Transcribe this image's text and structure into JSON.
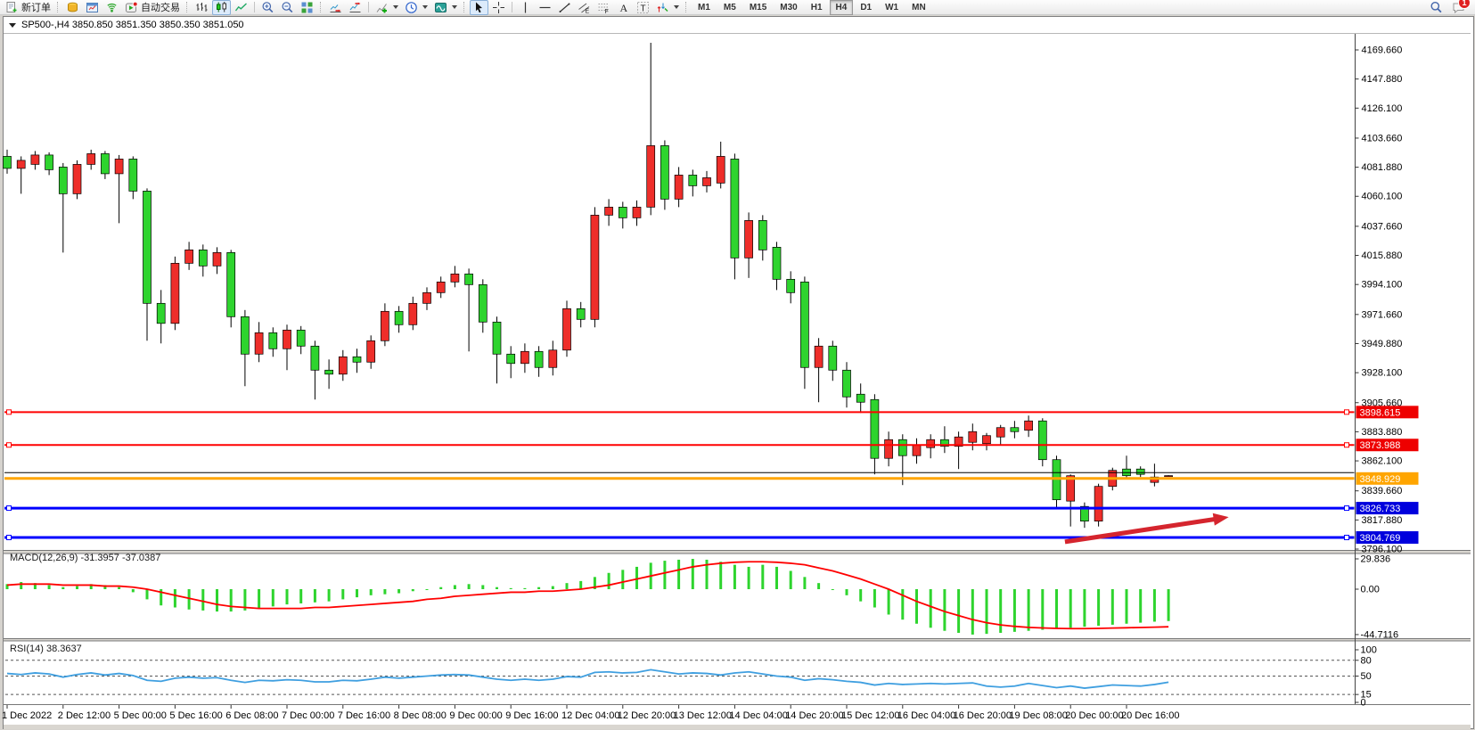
{
  "toolbar": {
    "items": [
      {
        "kind": "btn",
        "name": "new-order-button",
        "icon": "doc-new",
        "label": "新订单"
      },
      {
        "kind": "grip"
      },
      {
        "kind": "btn",
        "name": "market-watch-button",
        "icon": "gold-stack"
      },
      {
        "kind": "btn",
        "name": "data-window-button",
        "icon": "window-blue"
      },
      {
        "kind": "btn",
        "name": "signals-button",
        "icon": "signal"
      },
      {
        "kind": "btn",
        "name": "autotrading-button",
        "icon": "autotrade",
        "label": "自动交易"
      },
      {
        "kind": "grip"
      },
      {
        "kind": "btn",
        "name": "bar-chart-button",
        "icon": "ohlc"
      },
      {
        "kind": "btn",
        "name": "candlestick-button",
        "icon": "candles",
        "active": true
      },
      {
        "kind": "btn",
        "name": "line-chart-button",
        "icon": "linechart"
      },
      {
        "kind": "sep"
      },
      {
        "kind": "btn",
        "name": "zoom-in-button",
        "icon": "zoom-in"
      },
      {
        "kind": "btn",
        "name": "zoom-out-button",
        "icon": "zoom-out"
      },
      {
        "kind": "btn",
        "name": "tile-windows-button",
        "icon": "tiles"
      },
      {
        "kind": "grip"
      },
      {
        "kind": "btn",
        "name": "auto-scroll-button",
        "icon": "autoscroll"
      },
      {
        "kind": "btn",
        "name": "chart-shift-button",
        "icon": "chartshift"
      },
      {
        "kind": "sep"
      },
      {
        "kind": "btn",
        "name": "indicators-button",
        "icon": "ind-plus",
        "caret": true
      },
      {
        "kind": "btn",
        "name": "periods-button",
        "icon": "clock",
        "caret": true
      },
      {
        "kind": "btn",
        "name": "templates-button",
        "icon": "template",
        "caret": true
      },
      {
        "kind": "grip"
      },
      {
        "kind": "btn",
        "name": "cursor-button",
        "icon": "cursor",
        "active": true
      },
      {
        "kind": "btn",
        "name": "crosshair-button",
        "icon": "crosshair"
      },
      {
        "kind": "sep"
      },
      {
        "kind": "btn",
        "name": "vertical-line-button",
        "icon": "vline"
      },
      {
        "kind": "btn",
        "name": "horizontal-line-button",
        "icon": "hline"
      },
      {
        "kind": "btn",
        "name": "trendline-button",
        "icon": "trend"
      },
      {
        "kind": "btn",
        "name": "equidistant-channel-button",
        "icon": "channel"
      },
      {
        "kind": "btn",
        "name": "fibonacci-button",
        "icon": "fibo"
      },
      {
        "kind": "btn",
        "name": "text-button",
        "icon": "textA"
      },
      {
        "kind": "btn",
        "name": "text-label-button",
        "icon": "textT"
      },
      {
        "kind": "btn",
        "name": "arrows-button",
        "icon": "arrows",
        "caret": true
      },
      {
        "kind": "grip"
      },
      {
        "kind": "tf",
        "name": "tf-m1-button",
        "label": "M1"
      },
      {
        "kind": "tf",
        "name": "tf-m5-button",
        "label": "M5"
      },
      {
        "kind": "tf",
        "name": "tf-m15-button",
        "label": "M15"
      },
      {
        "kind": "tf",
        "name": "tf-m30-button",
        "label": "M30"
      },
      {
        "kind": "tf",
        "name": "tf-h1-button",
        "label": "H1"
      },
      {
        "kind": "tf",
        "name": "tf-h4-button",
        "label": "H4",
        "active": true
      },
      {
        "kind": "tf",
        "name": "tf-d1-button",
        "label": "D1"
      },
      {
        "kind": "tf",
        "name": "tf-w1-button",
        "label": "W1"
      },
      {
        "kind": "tf",
        "name": "tf-mn-button",
        "label": "MN"
      }
    ],
    "right_items": [
      {
        "name": "search-button",
        "icon": "search"
      },
      {
        "name": "notifications-button",
        "icon": "chat",
        "badge": "1"
      }
    ]
  },
  "window": {
    "title_line": "SP500-,H4  3850.850 3851.350 3850.350 3851.050"
  },
  "chart_data": {
    "type": "candlestick",
    "symbol": "SP500-",
    "timeframe": "H4",
    "current_bar": {
      "open": "3850.850",
      "high": "3851.350",
      "low": "3850.350",
      "close": "3851.050"
    },
    "up_color": "#ee2e2a",
    "down_color": "#2ed42e",
    "wick_color": "#000000",
    "price_axis": {
      "ticks": [
        "4169.660",
        "4147.880",
        "4126.100",
        "4103.660",
        "4081.880",
        "4060.100",
        "4037.660",
        "4015.880",
        "3994.100",
        "3971.660",
        "3949.880",
        "3928.100",
        "3905.660",
        "3883.880",
        "3862.100",
        "3839.660",
        "3817.880",
        "3796.100"
      ],
      "top_value": 4169.66,
      "bottom_value": 3796.1
    },
    "time_axis": [
      "1 Dec 2022",
      "2 Dec 12:00",
      "5 Dec 00:00",
      "5 Dec 16:00",
      "6 Dec 08:00",
      "7 Dec 00:00",
      "7 Dec 16:00",
      "8 Dec 08:00",
      "9 Dec 00:00",
      "9 Dec 16:00",
      "12 Dec 04:00",
      "12 Dec 20:00",
      "13 Dec 12:00",
      "14 Dec 04:00",
      "14 Dec 20:00",
      "15 Dec 12:00",
      "16 Dec 04:00",
      "16 Dec 20:00",
      "19 Dec 08:00",
      "20 Dec 00:00",
      "20 Dec 16:00"
    ],
    "candles": [
      [
        4090,
        4095,
        4077,
        4081
      ],
      [
        4081,
        4090,
        4062,
        4087
      ],
      [
        4084,
        4094,
        4080,
        4091
      ],
      [
        4091,
        4093,
        4076,
        4080
      ],
      [
        4082,
        4085,
        4018,
        4062
      ],
      [
        4062,
        4087,
        4058,
        4084
      ],
      [
        4084,
        4095,
        4080,
        4092
      ],
      [
        4092,
        4094,
        4073,
        4077
      ],
      [
        4077,
        4091,
        4040,
        4088
      ],
      [
        4088,
        4090,
        4058,
        4064
      ],
      [
        4064,
        4066,
        3952,
        3980
      ],
      [
        3980,
        3990,
        3950,
        3965
      ],
      [
        3965,
        4015,
        3960,
        4010
      ],
      [
        4010,
        4026,
        4005,
        4020
      ],
      [
        4020,
        4024,
        4000,
        4008
      ],
      [
        4008,
        4022,
        4002,
        4018
      ],
      [
        4018,
        4020,
        3962,
        3970
      ],
      [
        3970,
        3975,
        3918,
        3942
      ],
      [
        3942,
        3966,
        3936,
        3958
      ],
      [
        3958,
        3962,
        3940,
        3946
      ],
      [
        3946,
        3964,
        3930,
        3960
      ],
      [
        3960,
        3963,
        3942,
        3948
      ],
      [
        3948,
        3952,
        3908,
        3930
      ],
      [
        3930,
        3938,
        3916,
        3927
      ],
      [
        3927,
        3945,
        3922,
        3940
      ],
      [
        3940,
        3946,
        3928,
        3936
      ],
      [
        3936,
        3956,
        3931,
        3952
      ],
      [
        3952,
        3980,
        3948,
        3974
      ],
      [
        3974,
        3978,
        3958,
        3964
      ],
      [
        3964,
        3985,
        3960,
        3980
      ],
      [
        3980,
        3992,
        3975,
        3988
      ],
      [
        3988,
        4000,
        3984,
        3996
      ],
      [
        3996,
        4008,
        3992,
        4002
      ],
      [
        4002,
        4006,
        3944,
        3994
      ],
      [
        3994,
        3998,
        3958,
        3966
      ],
      [
        3966,
        3970,
        3920,
        3942
      ],
      [
        3942,
        3948,
        3924,
        3935
      ],
      [
        3935,
        3950,
        3928,
        3944
      ],
      [
        3944,
        3948,
        3925,
        3932
      ],
      [
        3932,
        3952,
        3926,
        3945
      ],
      [
        3945,
        3982,
        3940,
        3976
      ],
      [
        3976,
        3981,
        3962,
        3968
      ],
      [
        3968,
        4052,
        3962,
        4046
      ],
      [
        4046,
        4058,
        4038,
        4052
      ],
      [
        4052,
        4056,
        4036,
        4044
      ],
      [
        4044,
        4057,
        4038,
        4052
      ],
      [
        4052,
        4175,
        4046,
        4098
      ],
      [
        4098,
        4102,
        4050,
        4058
      ],
      [
        4058,
        4082,
        4052,
        4076
      ],
      [
        4076,
        4080,
        4060,
        4068
      ],
      [
        4068,
        4079,
        4063,
        4074
      ],
      [
        4070,
        4101,
        4066,
        4090
      ],
      [
        4088,
        4092,
        3998,
        4014
      ],
      [
        4014,
        4048,
        3999,
        4042
      ],
      [
        4042,
        4046,
        4012,
        4020
      ],
      [
        4022,
        4026,
        3990,
        3998
      ],
      [
        3998,
        4004,
        3980,
        3988
      ],
      [
        3996,
        4000,
        3916,
        3932
      ],
      [
        3932,
        3954,
        3906,
        3948
      ],
      [
        3948,
        3952,
        3922,
        3930
      ],
      [
        3930,
        3936,
        3902,
        3910
      ],
      [
        3912,
        3920,
        3898,
        3906
      ],
      [
        3908,
        3912,
        3852,
        3864
      ],
      [
        3864,
        3884,
        3858,
        3878
      ],
      [
        3878,
        3882,
        3844,
        3866
      ],
      [
        3866,
        3879,
        3860,
        3874
      ],
      [
        3872,
        3882,
        3864,
        3878
      ],
      [
        3878,
        3888,
        3868,
        3873
      ],
      [
        3873,
        3884,
        3856,
        3880
      ],
      [
        3876,
        3890,
        3870,
        3884
      ],
      [
        3875,
        3883,
        3870,
        3881
      ],
      [
        3880,
        3889,
        3874,
        3887
      ],
      [
        3887,
        3892,
        3879,
        3884
      ],
      [
        3885,
        3896,
        3880,
        3892
      ],
      [
        3892,
        3894,
        3858,
        3863
      ],
      [
        3863,
        3866,
        3826,
        3833
      ],
      [
        3832,
        3852,
        3813,
        3851
      ],
      [
        3828,
        3831,
        3812,
        3817
      ],
      [
        3817,
        3845,
        3813,
        3843
      ],
      [
        3843,
        3857,
        3840,
        3855
      ],
      [
        3856,
        3866,
        3849,
        3851
      ],
      [
        3856,
        3858,
        3850,
        3852
      ],
      [
        3846,
        3860,
        3843,
        3850
      ],
      [
        3850.85,
        3851.35,
        3850.35,
        3851.05
      ]
    ],
    "hlines": [
      {
        "price": 3898.615,
        "color": "#ff0000",
        "width": 2,
        "label": "3898.615",
        "label_bg": "#ee0000",
        "markers": true
      },
      {
        "price": 3873.988,
        "color": "#ff0000",
        "width": 2,
        "label": "3873.988",
        "label_bg": "#ee0000",
        "markers": true
      },
      {
        "price": 3853.3,
        "color": "#000000",
        "width": 1,
        "label": "",
        "label_bg": "",
        "markers": false
      },
      {
        "price": 3848.929,
        "color": "#ffa500",
        "width": 3,
        "label": "3848.929",
        "label_bg": "#ffa500",
        "markers": false
      },
      {
        "price": 3826.733,
        "color": "#0000ff",
        "width": 3,
        "label": "3826.733",
        "label_bg": "#0000dd",
        "markers": true
      },
      {
        "price": 3804.769,
        "color": "#0000ff",
        "width": 3,
        "label": "3804.769",
        "label_bg": "#0000dd",
        "markers": true
      }
    ],
    "macd": {
      "label": "MACD(12,26,9) -31.3957 -37.0387",
      "hist_color": "#2ed42e",
      "signal_color": "#ff0000",
      "axis_labels": [
        {
          "text": "29.836",
          "value": 29.836
        },
        {
          "text": "0.00",
          "value": 0
        },
        {
          "text": "-44.7116",
          "value": -44.7116
        }
      ],
      "values": [
        5,
        7,
        6,
        4,
        2,
        3,
        5,
        4,
        2,
        -3,
        -10,
        -16,
        -18,
        -20,
        -21,
        -22,
        -22,
        -21,
        -19,
        -17,
        -15,
        -14,
        -13,
        -12,
        -10,
        -8,
        -6,
        -5,
        -4,
        -2,
        0,
        2,
        4,
        5,
        4,
        2,
        1,
        1,
        2,
        3,
        6,
        8,
        12,
        16,
        19,
        22,
        26,
        28,
        29,
        29.8,
        29,
        27,
        24,
        22,
        24,
        22,
        18,
        12,
        6,
        0,
        -6,
        -12,
        -18,
        -25,
        -30,
        -34,
        -38,
        -41,
        -43,
        -44.7,
        -44,
        -43,
        -42,
        -41,
        -40,
        -39,
        -38,
        -37,
        -36,
        -35,
        -34,
        -33,
        -32,
        -31.4
      ],
      "signal": [
        4,
        5,
        5,
        5,
        4,
        4,
        4,
        3,
        3,
        2,
        0,
        -3,
        -6,
        -9,
        -12,
        -15,
        -17,
        -18,
        -19,
        -19,
        -19,
        -19,
        -18,
        -18,
        -17,
        -16,
        -15,
        -14,
        -13,
        -12,
        -10,
        -9,
        -7,
        -6,
        -5,
        -4,
        -3,
        -3,
        -2,
        -2,
        -1,
        0,
        2,
        4,
        7,
        10,
        13,
        16,
        19,
        22,
        24,
        25.5,
        26.5,
        27,
        27,
        26.5,
        25.5,
        24,
        21,
        18,
        14,
        10,
        5,
        0,
        -6,
        -12,
        -17,
        -22,
        -26,
        -30,
        -33,
        -35.2,
        -36.6,
        -37.6,
        -38.2,
        -38.6,
        -38.8,
        -38.8,
        -38.6,
        -38.3,
        -38,
        -37.7,
        -37.4,
        -37.04
      ]
    },
    "rsi": {
      "label": "RSI(14) 38.3637",
      "color": "#3f9fe0",
      "levels": [
        80,
        50,
        15
      ],
      "axis_labels": [
        {
          "text": "100",
          "value": 100
        },
        {
          "text": "80",
          "value": 80
        },
        {
          "text": "50",
          "value": 50
        },
        {
          "text": "15",
          "value": 15
        },
        {
          "text": "0",
          "value": 0
        }
      ],
      "values": [
        55,
        53,
        56,
        54,
        48,
        53,
        56,
        52,
        55,
        51,
        42,
        40,
        46,
        48,
        46,
        47,
        42,
        38,
        42,
        41,
        43,
        42,
        39,
        39,
        42,
        41,
        44,
        48,
        46,
        48,
        50,
        52,
        53,
        52,
        48,
        44,
        42,
        44,
        42,
        44,
        49,
        48,
        57,
        58,
        56,
        57,
        62,
        58,
        54,
        56,
        55,
        52,
        56,
        58,
        54,
        50,
        48,
        42,
        45,
        43,
        40,
        38,
        33,
        36,
        34,
        35,
        36,
        35,
        36,
        37,
        31,
        29,
        31,
        36,
        32,
        28,
        31,
        27,
        30,
        33,
        32,
        31,
        34,
        38.36
      ]
    },
    "arrow_annotation": {
      "from_bar": 75.6,
      "from_price": 3801.5,
      "to_bar": 87.3,
      "to_price": 3820,
      "color": "#d5252e"
    }
  }
}
